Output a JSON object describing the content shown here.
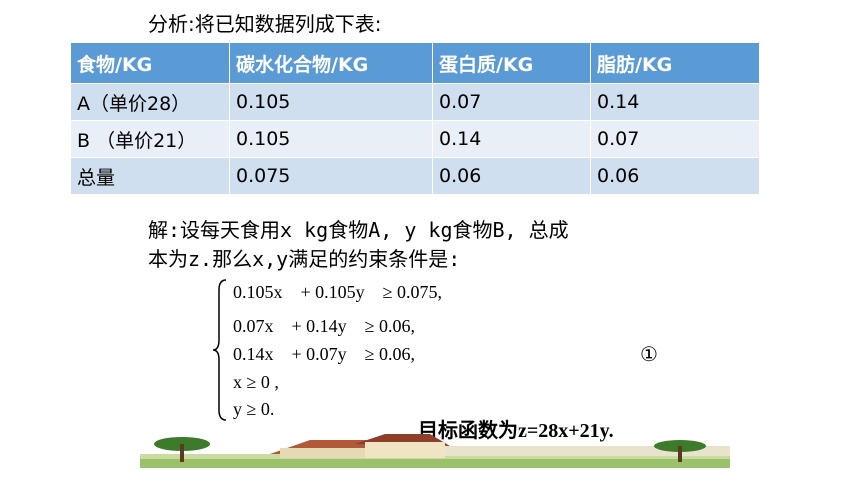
{
  "header": {
    "title": "分析:将已知数据列成下表:"
  },
  "table": {
    "columns": [
      "食物/KG",
      "碳水化合物/KG",
      "蛋白质/KG",
      "脂肪/KG"
    ],
    "rows": [
      [
        "A（单价28）",
        "0.105",
        "0.07",
        "0.14"
      ],
      [
        "B （单价21）",
        "0.105",
        "0.14",
        "0.07"
      ],
      [
        "总量",
        "0.075",
        "0.06",
        "0.06"
      ]
    ]
  },
  "solution": {
    "lines": [
      "解:设每天食用x kg食物A, y kg食物B, 总成",
      "本为z.那么x,y满足的约束条件是:"
    ]
  },
  "constraints": {
    "lines": [
      "0.105x    + 0.105y    ≥ 0.075,",
      "0.07x    + 0.14y    ≥ 0.06,",
      "0.14x    + 0.07y    ≥ 0.06,",
      "x ≥ 0 ,",
      "y ≥ 0."
    ],
    "label": "①"
  },
  "objective": "目标函数为z=28x+21y."
}
